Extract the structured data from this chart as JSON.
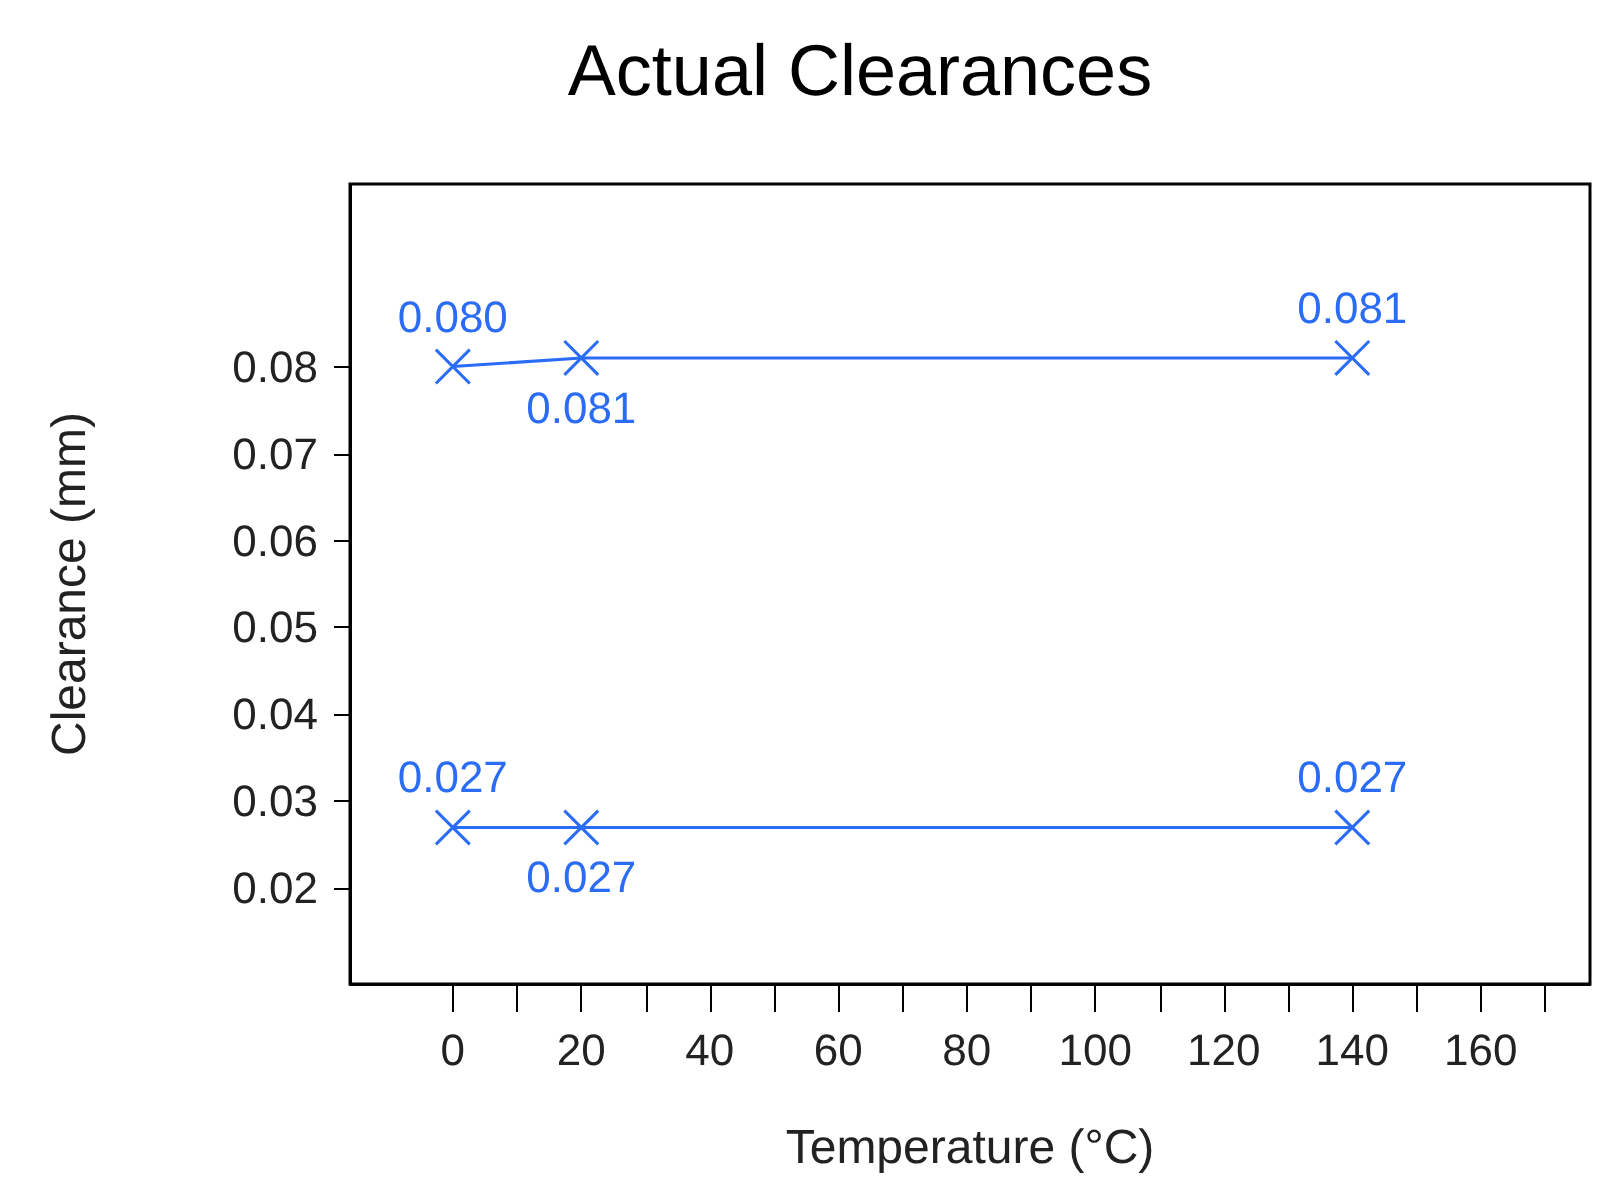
{
  "chart_data": {
    "type": "line",
    "title": "Actual Clearances",
    "xlabel": "Temperature (°C)",
    "ylabel": "Clearance (mm)",
    "x": [
      0,
      20,
      140
    ],
    "series": [
      {
        "color": "#2a6cf5",
        "values": [
          0.08,
          0.081,
          0.081
        ],
        "value_labels": [
          "0.080",
          "0.081",
          "0.081"
        ],
        "marker": "cross"
      },
      {
        "color": "#2a6cf5",
        "values": [
          0.027,
          0.027,
          0.027
        ],
        "value_labels": [
          "0.027",
          "0.027",
          "0.027"
        ],
        "marker": "cross"
      }
    ],
    "xlim": [
      -16,
      177
    ],
    "xticks": [
      0,
      {
        "value": 10,
        "label": null
      },
      20,
      {
        "value": 30,
        "label": null
      },
      40,
      {
        "value": 50,
        "label": null
      },
      60,
      {
        "value": 70,
        "label": null
      },
      80,
      {
        "value": 90,
        "label": null
      },
      100,
      {
        "value": 110,
        "label": null
      },
      120,
      {
        "value": 130,
        "label": null
      },
      140,
      {
        "value": 150,
        "label": null
      },
      160,
      {
        "value": 170,
        "label": null
      }
    ],
    "ylim": [
      0.009,
      0.101
    ],
    "yticks": [
      0.02,
      0.03,
      0.04,
      0.05,
      0.06,
      0.07,
      0.08
    ],
    "line_style": "solid"
  }
}
